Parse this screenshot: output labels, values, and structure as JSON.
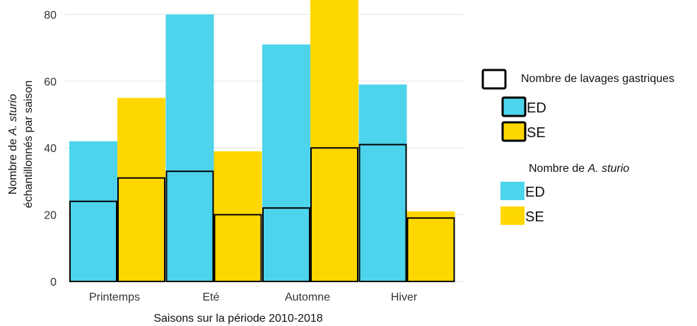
{
  "chart_data": {
    "type": "bar",
    "xlabel": "Saisons sur la période 2010-2018",
    "ylabel_line1_prefix": "Nombre de ",
    "ylabel_line1_italic": "A. sturio",
    "ylabel_line2": "échantillonnés par saison",
    "ylim": [
      0,
      84
    ],
    "yticks": [
      0,
      20,
      40,
      60,
      80
    ],
    "categories": [
      "Printemps",
      "Eté",
      "Automne",
      "Hiver"
    ],
    "grid": true,
    "legend_position": "right",
    "series": [
      {
        "group": "ED",
        "color": "#4dd3eb",
        "sturgeon_counts": [
          42,
          80,
          71,
          59
        ],
        "gastric_lavages": [
          24,
          33,
          22,
          41
        ]
      },
      {
        "group": "SE",
        "color": "#ffd700",
        "sturgeon_counts": [
          55,
          39,
          88,
          21
        ],
        "gastric_lavages": [
          31,
          20,
          40,
          19
        ]
      }
    ],
    "legend": {
      "lavage_title": "Nombre de lavages gastriques",
      "lavage_items": [
        {
          "label": "ED",
          "color": "#4dd3eb"
        },
        {
          "label": "SE",
          "color": "#ffd700"
        }
      ],
      "count_title_prefix": "Nombre de ",
      "count_title_italic": "A. sturio",
      "count_items": [
        {
          "label": "ED",
          "color": "#4dd3eb"
        },
        {
          "label": "SE",
          "color": "#ffd700"
        }
      ]
    }
  }
}
